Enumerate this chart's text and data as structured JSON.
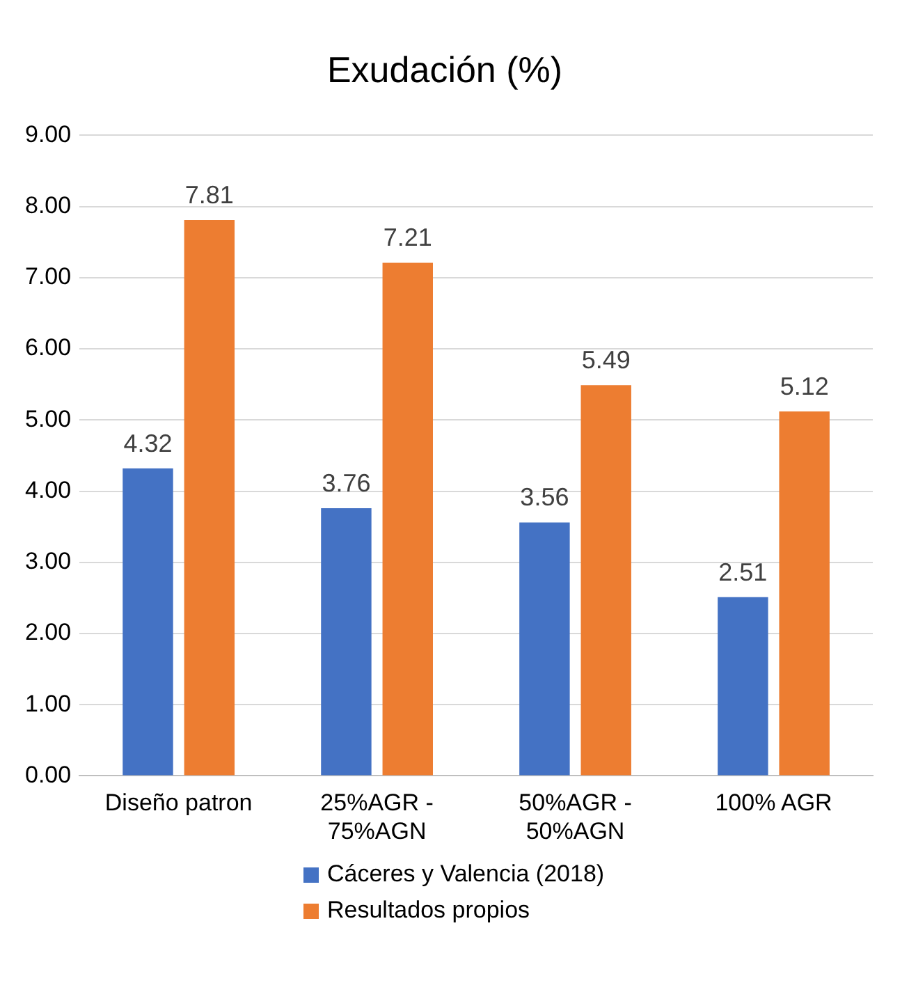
{
  "chart_data": {
    "type": "bar",
    "title": "Exudación (%)",
    "categories": [
      "Diseño patron",
      "25%AGR - 75%AGN",
      "50%AGR - 50%AGN",
      "100% AGR"
    ],
    "series": [
      {
        "name": "Cáceres y Valencia (2018)",
        "color": "#4472c4",
        "values": [
          4.32,
          3.76,
          3.56,
          2.51
        ]
      },
      {
        "name": "Resultados propios",
        "color": "#ed7d31",
        "values": [
          7.81,
          7.21,
          5.49,
          5.12
        ]
      }
    ],
    "ylim": [
      0,
      9
    ],
    "yticks": [
      {
        "value": 0,
        "label": "0.00"
      },
      {
        "value": 1,
        "label": "1.00"
      },
      {
        "value": 2,
        "label": "2.00"
      },
      {
        "value": 3,
        "label": "3.00"
      },
      {
        "value": 4,
        "label": "4.00"
      },
      {
        "value": 5,
        "label": "5.00"
      },
      {
        "value": 6,
        "label": "6.00"
      },
      {
        "value": 7,
        "label": "7.00"
      },
      {
        "value": 8,
        "label": "8.00"
      },
      {
        "value": 9,
        "label": "9.00"
      }
    ],
    "grid": "y",
    "legend": "bottom",
    "data_labels": true
  }
}
